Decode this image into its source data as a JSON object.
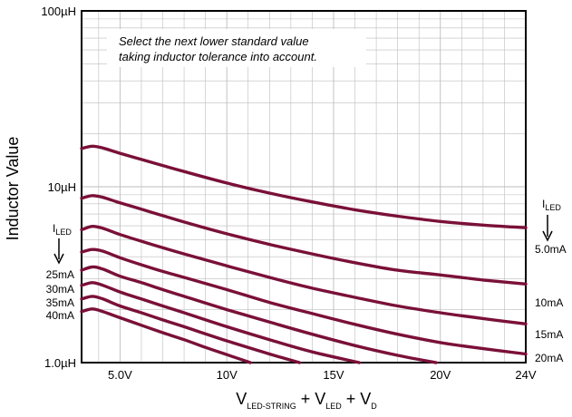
{
  "chart_data": {
    "type": "line",
    "xlabel": {
      "main": "V",
      "sub1": "LED-STRING",
      "mid1": " + V",
      "sub2": "LED",
      "mid2": " + V",
      "sub3": "D"
    },
    "ylabel": "Inductor Value",
    "annotation": [
      "Select the next lower standard value",
      "taking inductor tolerance into account."
    ],
    "x_scale": "linear",
    "y_scale": "log",
    "xlim": [
      3.2,
      24
    ],
    "ylim": [
      1.0,
      100
    ],
    "x_ticks": [
      5,
      10,
      15,
      20,
      24
    ],
    "x_tick_labels": [
      "5.0V",
      "10V",
      "15V",
      "20V",
      "24V"
    ],
    "y_ticks": [
      1,
      10,
      100
    ],
    "y_tick_labels": [
      "1.0µH",
      "10µH",
      "100µH"
    ],
    "grid": true,
    "line_color": "#7a1038",
    "left_legend": {
      "title": "I",
      "title_sub": "LED",
      "labels": [
        "25mA",
        "30mA",
        "35mA",
        "40mA"
      ]
    },
    "right_legend": {
      "title": "I",
      "title_sub": "LED",
      "labels": [
        "5.0mA",
        "10mA",
        "15mA",
        "20mA"
      ]
    },
    "series": [
      {
        "name": "5.0mA",
        "x": [
          3.2,
          3.7,
          4.2,
          5,
          6,
          7,
          8,
          10,
          12,
          14,
          16,
          18,
          20,
          22,
          24
        ],
        "y": [
          16.5,
          17.0,
          16.6,
          15.5,
          14.3,
          13.2,
          12.2,
          10.5,
          9.2,
          8.2,
          7.4,
          6.8,
          6.35,
          6.05,
          5.85
        ]
      },
      {
        "name": "10mA",
        "x": [
          3.2,
          3.7,
          4.2,
          5,
          6,
          7,
          8,
          10,
          12,
          14,
          16,
          18,
          20,
          22,
          24
        ],
        "y": [
          8.6,
          8.9,
          8.7,
          8.1,
          7.45,
          6.85,
          6.3,
          5.4,
          4.7,
          4.15,
          3.7,
          3.35,
          3.15,
          2.95,
          2.8
        ]
      },
      {
        "name": "15mA",
        "x": [
          3.2,
          3.7,
          4.2,
          5,
          6,
          7,
          8,
          10,
          12,
          14,
          16,
          18,
          20,
          22,
          24
        ],
        "y": [
          5.7,
          5.95,
          5.8,
          5.35,
          4.9,
          4.5,
          4.15,
          3.55,
          3.05,
          2.65,
          2.35,
          2.1,
          1.92,
          1.78,
          1.66
        ]
      },
      {
        "name": "20mA",
        "x": [
          3.2,
          3.7,
          4.2,
          5,
          6,
          7,
          8,
          10,
          12,
          14,
          16,
          18,
          20,
          22,
          24
        ],
        "y": [
          4.25,
          4.4,
          4.3,
          3.95,
          3.6,
          3.3,
          3.05,
          2.6,
          2.2,
          1.9,
          1.65,
          1.45,
          1.3,
          1.2,
          1.12
        ]
      },
      {
        "name": "25mA",
        "x": [
          3.2,
          3.7,
          4.2,
          5,
          6,
          7,
          8,
          10,
          12,
          14,
          16,
          18,
          19.8
        ],
        "y": [
          3.35,
          3.5,
          3.4,
          3.1,
          2.85,
          2.6,
          2.38,
          2.0,
          1.7,
          1.45,
          1.25,
          1.1,
          1.0
        ]
      },
      {
        "name": "30mA",
        "x": [
          3.2,
          3.7,
          4.2,
          5,
          6,
          7,
          8,
          10,
          12,
          14,
          16.2
        ],
        "y": [
          2.75,
          2.85,
          2.75,
          2.52,
          2.3,
          2.1,
          1.92,
          1.6,
          1.35,
          1.15,
          1.0
        ]
      },
      {
        "name": "35mA",
        "x": [
          3.2,
          3.7,
          4.2,
          5,
          6,
          7,
          8,
          10,
          12,
          13.4
        ],
        "y": [
          2.3,
          2.38,
          2.3,
          2.1,
          1.92,
          1.75,
          1.6,
          1.33,
          1.12,
          1.0
        ]
      },
      {
        "name": "40mA",
        "x": [
          3.2,
          3.7,
          4.2,
          5,
          6,
          7,
          8,
          9,
          10,
          11.1
        ],
        "y": [
          1.95,
          2.02,
          1.95,
          1.8,
          1.63,
          1.48,
          1.35,
          1.22,
          1.11,
          1.0
        ]
      }
    ]
  }
}
